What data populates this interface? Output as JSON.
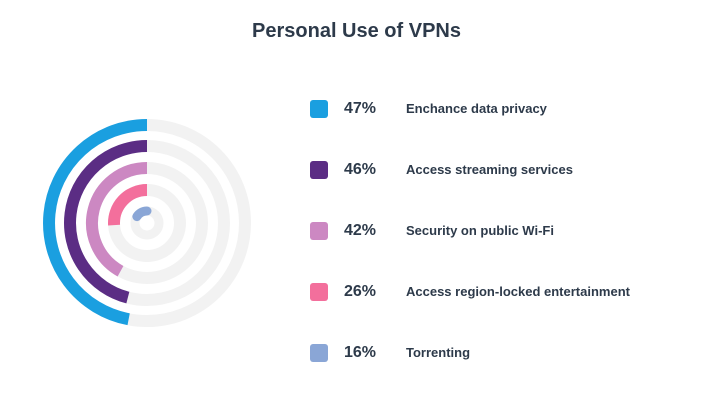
{
  "title": "Personal Use of VPNs",
  "chart_data": {
    "type": "radial-bar",
    "title": "Personal Use of VPNs",
    "max": 100,
    "track_color": "#f2f2f2",
    "series": [
      {
        "name": "Enchance data privacy",
        "value": 47,
        "label": "47%",
        "color": "#1a9fe0"
      },
      {
        "name": "Access streaming services",
        "value": 46,
        "label": "46%",
        "color": "#5b2d84"
      },
      {
        "name": "Security on public Wi-Fi",
        "value": 42,
        "label": "42%",
        "color": "#cc88c2"
      },
      {
        "name": "Access region-locked entertainment",
        "value": 26,
        "label": "26%",
        "color": "#f36f9c"
      },
      {
        "name": "Torrenting",
        "value": 16,
        "label": "16%",
        "color": "#8aa6d6"
      }
    ],
    "legend": "right"
  }
}
